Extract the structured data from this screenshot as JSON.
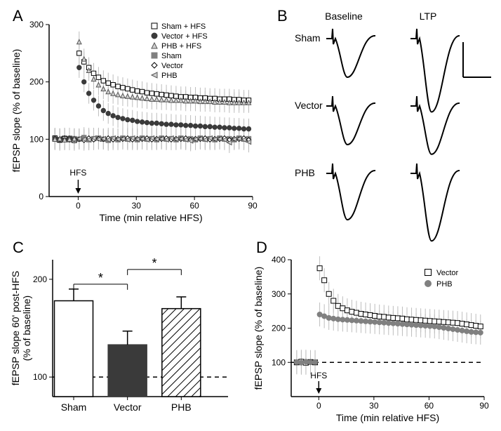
{
  "panelA": {
    "label": "A",
    "xlabel": "Time (min relative HFS)",
    "ylabel": "fEPSP slope (% of baseline)",
    "xlim": [
      -15,
      90
    ],
    "ylim": [
      0,
      300
    ],
    "xticks": [
      0,
      30,
      60,
      90
    ],
    "yticks": [
      0,
      100,
      200,
      300
    ],
    "hfs_label": "HFS",
    "legend": [
      {
        "name": "Sham + HFS",
        "marker": "square",
        "fill": "#ffffff",
        "stroke": "#000000"
      },
      {
        "name": "Vector + HFS",
        "marker": "circle",
        "fill": "#3a3a3a",
        "stroke": "#3a3a3a"
      },
      {
        "name": "PHB + HFS",
        "marker": "triangle",
        "fill": "#cfcfcf",
        "stroke": "#555555"
      },
      {
        "name": "Sham",
        "marker": "square",
        "fill": "#808080",
        "stroke": "#808080"
      },
      {
        "name": "Vector",
        "marker": "diamond",
        "fill": "#ffffff",
        "stroke": "#000000"
      },
      {
        "name": "PHB",
        "marker": "triangle-left",
        "fill": "#cfcfcf",
        "stroke": "#555555"
      }
    ],
    "series": {
      "sham_hfs": {
        "color": "#000000",
        "fill": "#ffffff",
        "marker": "square",
        "y": [
          102,
          99,
          101,
          100,
          98,
          250,
          235,
          225,
          215,
          208,
          202,
          198,
          195,
          192,
          190,
          188,
          186,
          184,
          183,
          181,
          180,
          179,
          178,
          177,
          176,
          175,
          174,
          174,
          173,
          173,
          172,
          172,
          171,
          171,
          170,
          170,
          170,
          169,
          169,
          168,
          168
        ]
      },
      "vector_hfs": {
        "color": "#3a3a3a",
        "fill": "#3a3a3a",
        "marker": "circle",
        "y": [
          101,
          100,
          99,
          102,
          100,
          225,
          200,
          180,
          168,
          158,
          150,
          145,
          141,
          138,
          136,
          134,
          133,
          131,
          130,
          129,
          128,
          128,
          127,
          126,
          126,
          125,
          125,
          124,
          124,
          123,
          123,
          122,
          122,
          121,
          121,
          120,
          120,
          119,
          119,
          118,
          118
        ]
      },
      "phb_hfs": {
        "color": "#555555",
        "fill": "#cfcfcf",
        "marker": "triangle",
        "y": [
          100,
          101,
          99,
          100,
          101,
          270,
          240,
          220,
          205,
          195,
          188,
          183,
          180,
          178,
          176,
          175,
          174,
          173,
          172,
          171,
          170,
          170,
          169,
          169,
          168,
          168,
          168,
          167,
          167,
          167,
          166,
          166,
          166,
          165,
          165,
          165,
          164,
          164,
          164,
          164,
          164
        ]
      },
      "sham": {
        "color": "#808080",
        "fill": "#808080",
        "marker": "square",
        "y": [
          100,
          98,
          102,
          99,
          101,
          100,
          103,
          99,
          101,
          102,
          100,
          98,
          101,
          99,
          102,
          100,
          101,
          99,
          102,
          100,
          101,
          99,
          102,
          100,
          101,
          99,
          102,
          100,
          101,
          99,
          102,
          100,
          101,
          99,
          102,
          100,
          101,
          99,
          102,
          100,
          101
        ]
      },
      "vector": {
        "color": "#000000",
        "fill": "#ffffff",
        "marker": "diamond",
        "y": [
          101,
          100,
          102,
          99,
          101,
          100,
          98,
          102,
          99,
          101,
          100,
          102,
          99,
          101,
          100,
          102,
          99,
          101,
          100,
          102,
          99,
          101,
          100,
          102,
          99,
          101,
          100,
          102,
          99,
          101,
          100,
          102,
          99,
          101,
          100,
          102,
          99,
          101,
          100,
          102,
          99
        ]
      },
      "phb": {
        "color": "#555555",
        "fill": "#cfcfcf",
        "marker": "triangle-left",
        "y": [
          99,
          101,
          100,
          102,
          99,
          101,
          100,
          99,
          102,
          100,
          101,
          99,
          102,
          100,
          101,
          99,
          102,
          100,
          101,
          99,
          102,
          100,
          101,
          99,
          102,
          100,
          101,
          99,
          97,
          100,
          101,
          99,
          102,
          100,
          101,
          99,
          94,
          100,
          101,
          99,
          95
        ]
      }
    },
    "error": 18,
    "x_start": -12,
    "x_step": 2.5
  },
  "panelB": {
    "label": "B",
    "col_labels": [
      "Baseline",
      "LTP"
    ],
    "row_labels": [
      "Sham",
      "Vector",
      "PHB"
    ],
    "scale_label": "",
    "rows": [
      {
        "baseline_amp": 1.0,
        "ltp_amp": 1.9
      },
      {
        "baseline_amp": 1.0,
        "ltp_amp": 1.25
      },
      {
        "baseline_amp": 1.2,
        "ltp_amp": 1.75
      }
    ],
    "stroke": "#000000"
  },
  "panelC": {
    "label": "C",
    "ylabel_top": "fEPSP slope 60' post-HFS",
    "ylabel_bot": "(% of baseline)",
    "ylim": [
      100,
      200
    ],
    "yticks": [
      100,
      200
    ],
    "categories": [
      "Sham",
      "Vector",
      "PHB"
    ],
    "bars": [
      {
        "value": 178,
        "err": 12,
        "fill": "#ffffff",
        "stroke": "#000000",
        "hatch": false
      },
      {
        "value": 133,
        "err": 14,
        "fill": "#3a3a3a",
        "stroke": "#3a3a3a",
        "hatch": false
      },
      {
        "value": 170,
        "err": 12,
        "fill": "#ffffff",
        "stroke": "#000000",
        "hatch": true
      }
    ],
    "sig": [
      {
        "a": 0,
        "b": 1,
        "y": 195,
        "label": "*"
      },
      {
        "a": 1,
        "b": 2,
        "y": 210,
        "label": "*"
      }
    ],
    "baseline_dash": 100
  },
  "panelD": {
    "label": "D",
    "xlabel": "Time (min relative HFS)",
    "ylabel": "fEPSP slope (% of baseline)",
    "xlim": [
      -15,
      90
    ],
    "ylim": [
      0,
      400
    ],
    "xticks": [
      0,
      30,
      60,
      90
    ],
    "yticks": [
      100,
      200,
      300,
      400
    ],
    "hfs_label": "HFS",
    "legend": [
      {
        "name": "Vector",
        "marker": "square",
        "fill": "#ffffff",
        "stroke": "#000000"
      },
      {
        "name": "PHB",
        "marker": "circle",
        "fill": "#808080",
        "stroke": "#808080"
      }
    ],
    "series": {
      "vector": {
        "color": "#000000",
        "fill": "#ffffff",
        "marker": "square",
        "y": [
          100,
          102,
          99,
          101,
          100,
          375,
          340,
          300,
          280,
          265,
          258,
          252,
          248,
          245,
          242,
          240,
          238,
          236,
          234,
          233,
          231,
          230,
          229,
          228,
          226,
          225,
          224,
          223,
          222,
          221,
          220,
          219,
          218,
          217,
          216,
          215,
          213,
          211,
          209,
          207,
          205
        ]
      },
      "phb": {
        "color": "#808080",
        "fill": "#808080",
        "marker": "circle",
        "y": [
          101,
          99,
          102,
          100,
          101,
          240,
          235,
          230,
          228,
          226,
          225,
          224,
          223,
          222,
          221,
          220,
          219,
          218,
          217,
          216,
          215,
          214,
          213,
          212,
          211,
          210,
          209,
          208,
          207,
          206,
          205,
          203,
          201,
          199,
          197,
          195,
          193,
          191,
          189,
          188,
          187
        ]
      }
    },
    "error": 35,
    "x_start": -12,
    "x_step": 2.5,
    "baseline_dash": 100
  }
}
